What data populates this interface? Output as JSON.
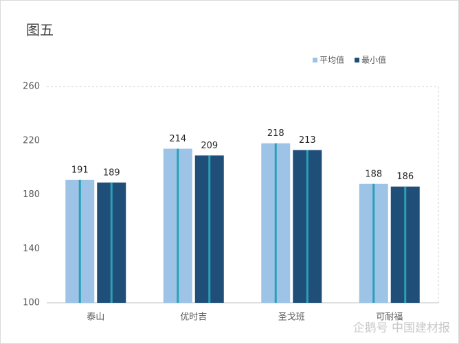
{
  "chart_data": {
    "type": "bar",
    "title": "图五",
    "categories": [
      "泰山",
      "优时吉",
      "圣戈班",
      "可耐福"
    ],
    "series": [
      {
        "name": "平均值",
        "color": "#9dc3e6",
        "values": [
          191,
          214,
          218,
          188
        ]
      },
      {
        "name": "最小值",
        "color": "#1f4e79",
        "values": [
          189,
          209,
          213,
          186
        ]
      }
    ],
    "ylim": [
      100,
      260
    ],
    "yticks": [
      100,
      140,
      180,
      220,
      260
    ],
    "grid": false,
    "legend": "top-right",
    "watermark": "企鹅号 中国建材报"
  }
}
